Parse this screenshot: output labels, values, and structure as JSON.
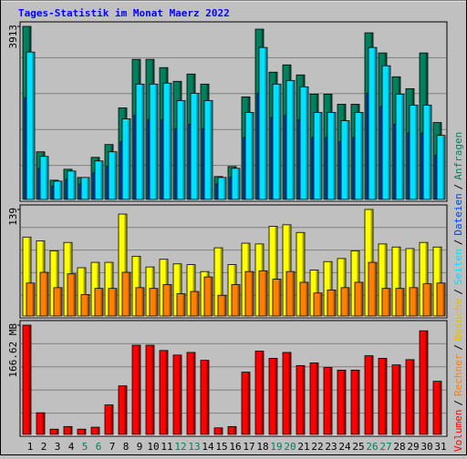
{
  "legend_separator": "/",
  "chart_data": [
    {
      "type": "bar",
      "title": "Tages-Statistik im Monat Maerz 2022",
      "ylim": [
        0,
        3913
      ],
      "yticks": [
        3913
      ],
      "series": [
        {
          "name": "Anfragen",
          "color": "#00805c",
          "values": [
            3913,
            1077,
            435,
            683,
            497,
            952,
            1242,
            2070,
            3168,
            3168,
            2981,
            2671,
            2836,
            2609,
            518,
            745,
            2319,
            3851,
            2878,
            3043,
            2816,
            2381,
            2381,
            2153,
            2153,
            3768,
            3313,
            2774,
            2505,
            3313,
            1739
          ]
        },
        {
          "name": "Dateien",
          "color": "#0040ff",
          "values": [
            2300,
            700,
            300,
            450,
            350,
            600,
            750,
            1300,
            1900,
            1800,
            1800,
            1600,
            1700,
            1600,
            350,
            500,
            1400,
            2400,
            1850,
            1900,
            1800,
            1400,
            1400,
            1300,
            1400,
            2400,
            2100,
            1700,
            1500,
            1500,
            1000
          ]
        },
        {
          "name": "Seiten",
          "color": "#00e0ff",
          "values": [
            3333,
            973,
            414,
            642,
            497,
            870,
            1077,
            1822,
            2609,
            2609,
            2630,
            2236,
            2402,
            2236,
            497,
            704,
            1967,
            3437,
            2609,
            2691,
            2547,
            1967,
            1967,
            1780,
            1967,
            3437,
            3023,
            2381,
            2132,
            2132,
            1449
          ]
        }
      ]
    },
    {
      "type": "bar",
      "ylim": [
        0,
        139
      ],
      "yticks": [
        139
      ],
      "series": [
        {
          "name": "Besuche",
          "color": "#ffff00",
          "values": [
            103,
            98,
            85,
            96,
            63,
            70,
            70,
            133,
            78,
            64,
            74,
            68,
            67,
            58,
            89,
            67,
            95,
            94,
            117,
            119,
            109,
            60,
            71,
            75,
            85,
            139,
            94,
            90,
            88,
            96,
            90
          ]
        },
        {
          "name": "Rechner",
          "color": "#ff8000",
          "values": [
            43,
            57,
            37,
            55,
            28,
            36,
            36,
            57,
            37,
            36,
            41,
            29,
            32,
            51,
            27,
            41,
            58,
            59,
            48,
            58,
            44,
            30,
            34,
            37,
            44,
            70,
            36,
            36,
            37,
            42,
            43
          ]
        }
      ]
    },
    {
      "type": "bar",
      "ylim": [
        0,
        166.62
      ],
      "yticks": [
        {
          "value": 166.62,
          "label": "166.62 MB"
        }
      ],
      "categories": [
        "1",
        "2",
        "3",
        "4",
        "5",
        "6",
        "7",
        "8",
        "9",
        "10",
        "11",
        "12",
        "13",
        "14",
        "15",
        "16",
        "17",
        "18",
        "19",
        "20",
        "21",
        "22",
        "23",
        "24",
        "25",
        "26",
        "27",
        "28",
        "29",
        "30",
        "31"
      ],
      "category_colors": [
        "#000000",
        "#000000",
        "#000000",
        "#000000",
        "#00805c",
        "#00805c",
        "#000000",
        "#000000",
        "#000000",
        "#000000",
        "#000000",
        "#00805c",
        "#00805c",
        "#000000",
        "#000000",
        "#000000",
        "#000000",
        "#000000",
        "#00805c",
        "#00805c",
        "#000000",
        "#000000",
        "#000000",
        "#000000",
        "#000000",
        "#00805c",
        "#00805c",
        "#000000",
        "#000000",
        "#000000",
        "#000000"
      ],
      "series": [
        {
          "name": "Volumen",
          "color": "#ff0000",
          "values": [
            166.62,
            33,
            8,
            12,
            8,
            11,
            45,
            74,
            136,
            136,
            128,
            121,
            125,
            113,
            10,
            12,
            95,
            127,
            116,
            125,
            105,
            109,
            102,
            98,
            98,
            120,
            116,
            106,
            114,
            158,
            81
          ]
        }
      ]
    }
  ]
}
